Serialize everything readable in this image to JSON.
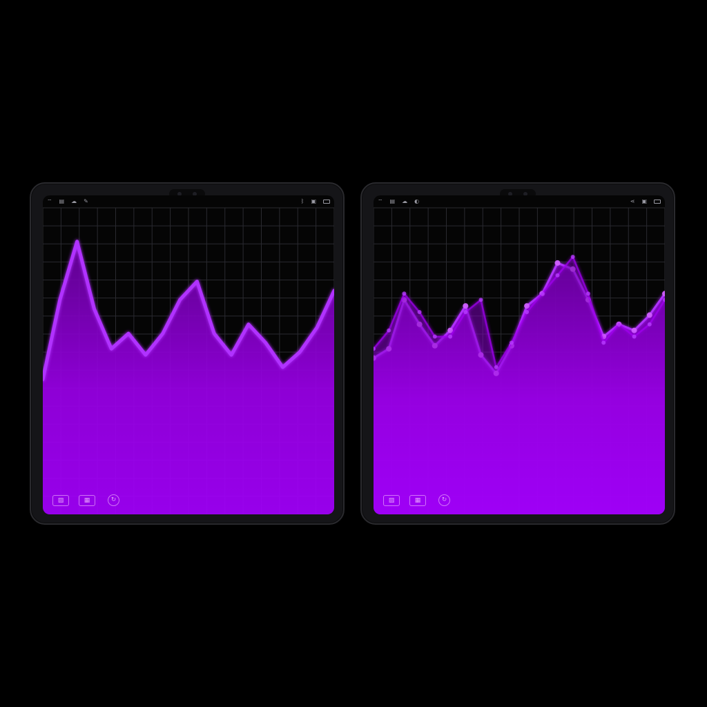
{
  "theme": {
    "background": "#000000",
    "accent": "#a000f0",
    "accent_light": "#c040ff",
    "grid": "#2a2a30"
  },
  "tablets": [
    {
      "status_left_icons": [
        "wifi-icon",
        "signal-icon",
        "cloud-icon",
        "edit-icon"
      ],
      "status_right_icons": [
        "bluetooth-icon",
        "copy-icon",
        "battery-icon"
      ],
      "bottom_icons": [
        "image-icon",
        "calendar-icon",
        "refresh-icon"
      ]
    },
    {
      "status_left_icons": [
        "wifi-icon",
        "signal-icon",
        "cloud-icon",
        "sync-icon"
      ],
      "status_right_icons": [
        "share-icon",
        "copy-icon",
        "battery-icon"
      ],
      "bottom_icons": [
        "image-icon",
        "calendar-icon",
        "refresh-icon"
      ]
    }
  ],
  "chart_data": [
    {
      "type": "area",
      "title": "",
      "xlabel": "",
      "ylabel": "",
      "grid": true,
      "ylim": [
        0,
        100
      ],
      "x": [
        0,
        1,
        2,
        3,
        4,
        5,
        6,
        7,
        8,
        9,
        10,
        11,
        12,
        13,
        14,
        15,
        16,
        17
      ],
      "series": [
        {
          "values": [
            44,
            70,
            89,
            67,
            54,
            59,
            52,
            59,
            70,
            76,
            59,
            52,
            62,
            56,
            48,
            53,
            61,
            73
          ],
          "color": "#b030ff"
        }
      ]
    },
    {
      "type": "area",
      "title": "",
      "xlabel": "",
      "ylabel": "",
      "grid": true,
      "ylim": [
        0,
        100
      ],
      "x": [
        0,
        1,
        2,
        3,
        4,
        5,
        6,
        7,
        8,
        9,
        10,
        11,
        12,
        13,
        14,
        15,
        16,
        17,
        18,
        19
      ],
      "series": [
        {
          "values": [
            51,
            54,
            70,
            62,
            55,
            60,
            68,
            52,
            46,
            55,
            68,
            72,
            82,
            80,
            70,
            58,
            62,
            60,
            65,
            72
          ],
          "color": "#b030ff"
        },
        {
          "values": [
            54,
            60,
            72,
            66,
            58,
            58,
            66,
            70,
            48,
            56,
            66,
            72,
            78,
            84,
            72,
            56,
            62,
            58,
            62,
            70
          ],
          "color": "#a000f0"
        }
      ]
    }
  ]
}
